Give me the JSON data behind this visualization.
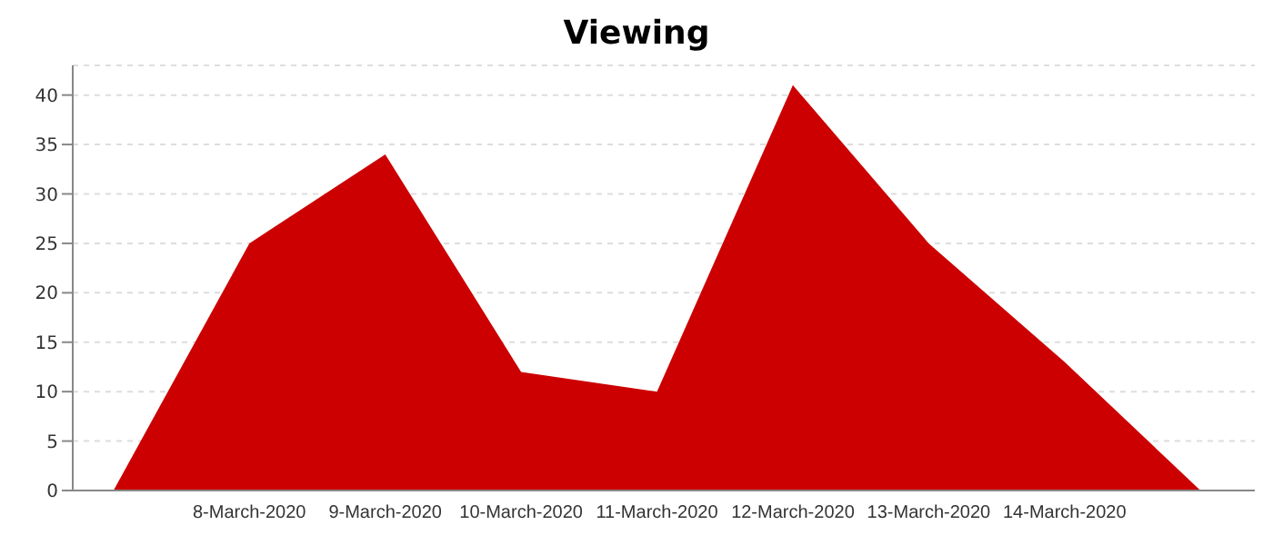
{
  "chart_data": {
    "type": "area",
    "title": "Viewing",
    "categories": [
      null,
      "8-March-2020",
      "9-March-2020",
      "10-March-2020",
      "11-March-2020",
      "12-March-2020",
      "13-March-2020",
      "14-March-2020",
      null
    ],
    "values": [
      0,
      25,
      34,
      12,
      10,
      41,
      25,
      13,
      0
    ],
    "color": "#cc0000",
    "ylim": [
      0,
      43
    ],
    "yticks": [
      0,
      5,
      10,
      15,
      20,
      25,
      30,
      35,
      40
    ],
    "grid": "y",
    "legend": false
  }
}
